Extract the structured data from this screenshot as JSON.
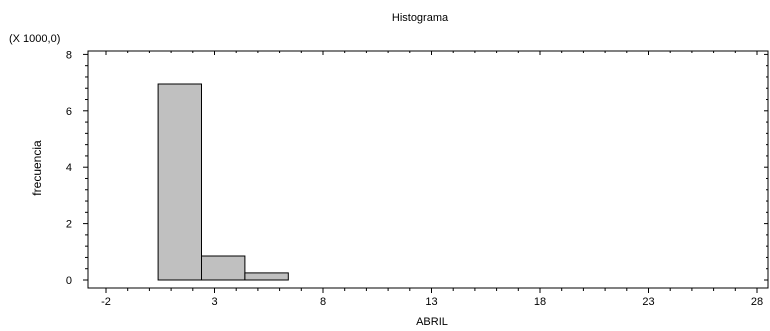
{
  "chart_data": {
    "type": "bar",
    "title": "Histograma",
    "xlabel": "ABRIL",
    "ylabel": "frecuencia",
    "y_multiplier_label": "(X 1000,0)",
    "xlim": [
      -3,
      29
    ],
    "ylim": [
      -0.3,
      8.0
    ],
    "x_ticks": [
      -2,
      3,
      8,
      13,
      18,
      23,
      28
    ],
    "x_tick_labels": [
      "-2",
      "3",
      "8",
      "13",
      "18",
      "23",
      "28"
    ],
    "y_ticks": [
      0,
      2,
      4,
      6,
      8
    ],
    "y_tick_labels": [
      "0",
      "2",
      "4",
      "6",
      "8"
    ],
    "bins": [
      {
        "start": -3.0,
        "end": 0.4,
        "value": 0
      },
      {
        "start": 0.4,
        "end": 2.4,
        "value": 6.95
      },
      {
        "start": 2.4,
        "end": 4.4,
        "value": 0.85
      },
      {
        "start": 4.4,
        "end": 6.4,
        "value": 0.25
      },
      {
        "start": 6.4,
        "end": 29.0,
        "value": 0
      }
    ],
    "grid": false,
    "bar_color": "#c0c0c0"
  }
}
